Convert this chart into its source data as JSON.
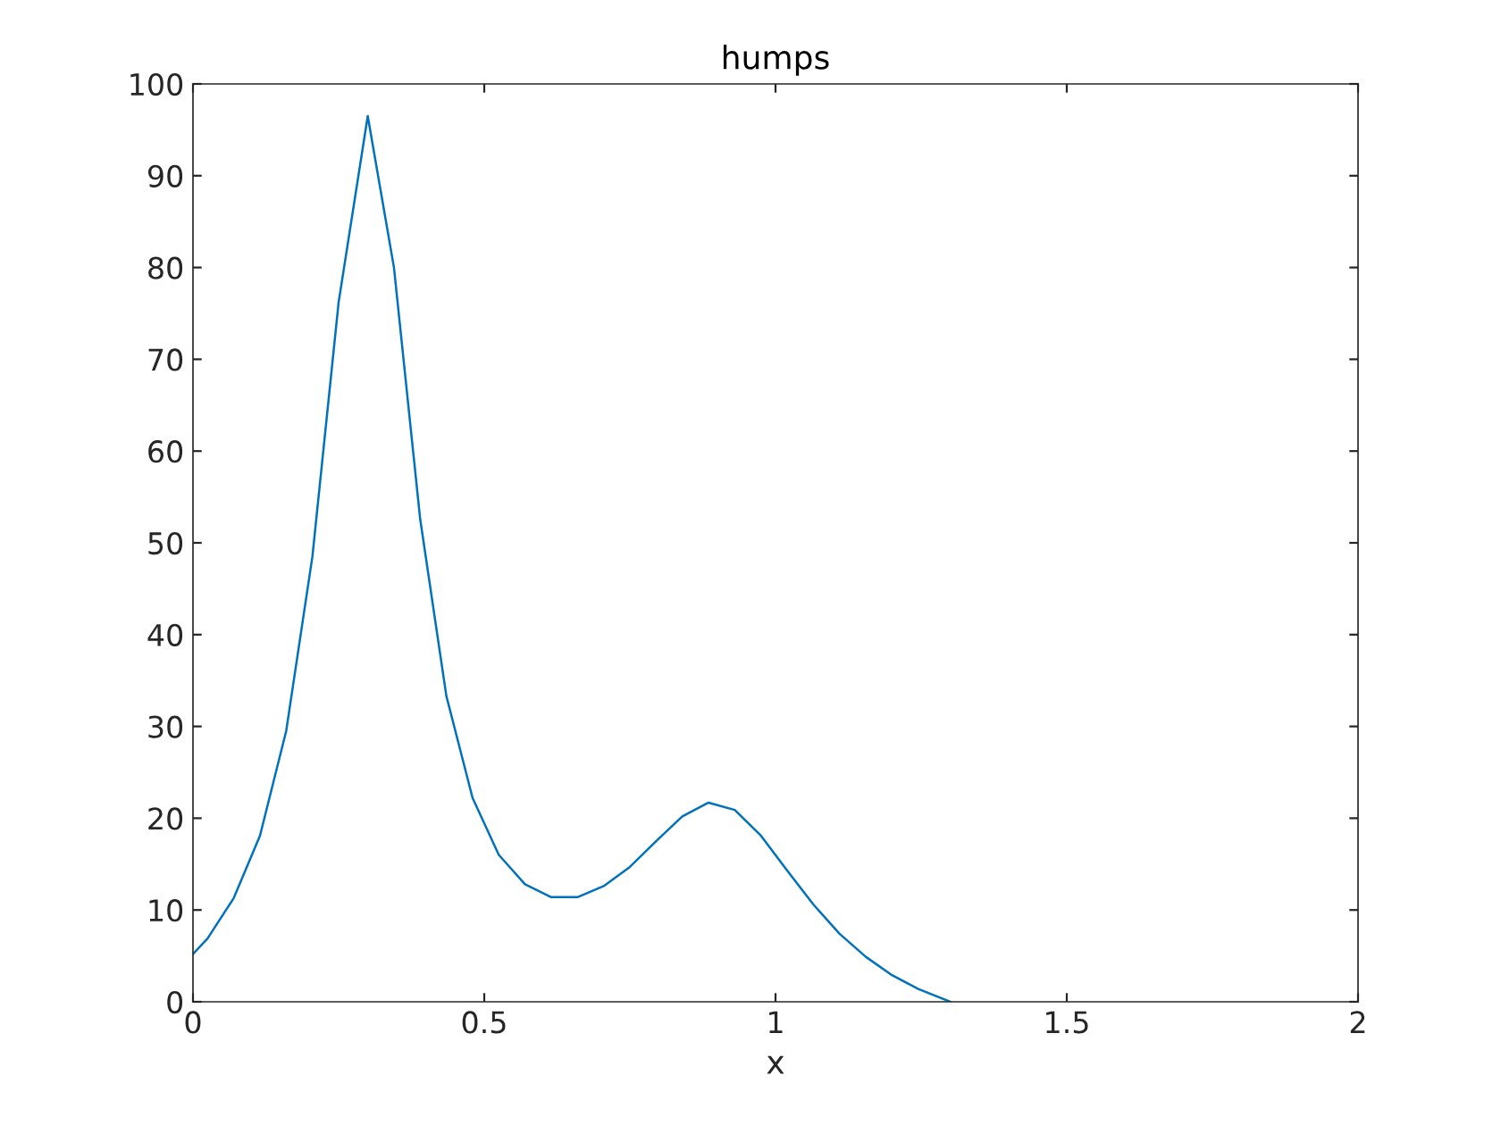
{
  "chart_data": {
    "type": "line",
    "title": "humps",
    "xlabel": "x",
    "x": [
      0,
      0.025,
      0.07,
      0.115,
      0.16,
      0.205,
      0.25,
      0.3,
      0.345,
      0.39,
      0.435,
      0.48,
      0.525,
      0.57,
      0.615,
      0.66,
      0.705,
      0.75,
      0.795,
      0.84,
      0.885,
      0.93,
      0.975,
      1.02,
      1.065,
      1.11,
      1.155,
      1.2,
      1.245,
      1.3
    ],
    "series": [
      {
        "color": "#0072bd",
        "values": [
          5.2,
          6.9,
          11.3,
          18.1,
          29.5,
          48.5,
          76.2,
          96.5,
          80.0,
          52.6,
          33.3,
          22.2,
          16.0,
          12.8,
          11.4,
          11.4,
          12.6,
          14.7,
          17.5,
          20.2,
          21.7,
          20.9,
          18.1,
          14.3,
          10.6,
          7.4,
          4.9,
          2.9,
          1.4,
          0
        ]
      }
    ],
    "xlim": [
      0,
      2
    ],
    "ylim": [
      0,
      100
    ],
    "xticks": [
      0,
      0.5,
      1,
      1.5,
      2
    ],
    "yticks": [
      0,
      10,
      20,
      30,
      40,
      50,
      60,
      70,
      80,
      90,
      100
    ],
    "grid": false,
    "marker": "none",
    "line_style": "solid"
  }
}
